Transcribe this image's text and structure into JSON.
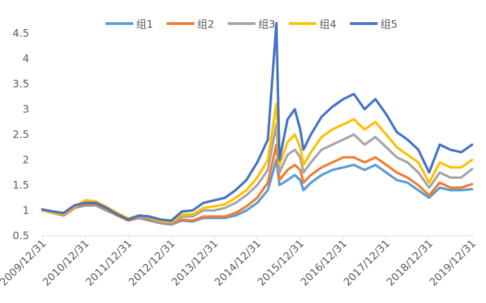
{
  "chart_data": {
    "type": "line",
    "title": "",
    "xlabel": "",
    "ylabel": "",
    "ylim": [
      0.5,
      4.5
    ],
    "yticks": [
      "0.5",
      "1",
      "1.5",
      "2",
      "2.5",
      "3",
      "3.5",
      "4",
      "4.5"
    ],
    "x_tick_labels": [
      "2009/12/31",
      "2010/12/31",
      "2011/12/31",
      "2012/12/31",
      "2013/12/31",
      "2014/12/31",
      "2015/12/31",
      "2016/12/31",
      "2017/12/31",
      "2018/12/31",
      "2019/12/31"
    ],
    "grid": false,
    "legend_position": "top",
    "x": [
      "2009/12/31",
      "2010/03/31",
      "2010/06/30",
      "2010/09/30",
      "2010/12/31",
      "2011/03/31",
      "2011/06/30",
      "2011/09/30",
      "2011/12/31",
      "2012/03/31",
      "2012/06/30",
      "2012/09/30",
      "2012/12/31",
      "2013/03/31",
      "2013/06/30",
      "2013/09/30",
      "2013/12/31",
      "2014/03/31",
      "2014/06/30",
      "2014/09/30",
      "2014/12/31",
      "2015/03/31",
      "2015/06/12",
      "2015/07/08",
      "2015/09/15",
      "2015/11/15",
      "2015/12/31",
      "2016/01/28",
      "2016/03/31",
      "2016/06/30",
      "2016/09/30",
      "2016/12/31",
      "2017/03/31",
      "2017/06/30",
      "2017/09/30",
      "2017/12/31",
      "2018/03/31",
      "2018/06/30",
      "2018/09/30",
      "2018/12/31",
      "2019/03/31",
      "2019/06/30",
      "2019/09/30",
      "2019/12/31"
    ],
    "series": [
      {
        "name": "组1",
        "color": "#5B9BD5",
        "values": [
          1.0,
          0.95,
          0.9,
          1.05,
          1.1,
          1.1,
          1.0,
          0.9,
          0.8,
          0.85,
          0.8,
          0.75,
          0.72,
          0.8,
          0.78,
          0.85,
          0.85,
          0.85,
          0.9,
          1.0,
          1.15,
          1.4,
          2.0,
          1.5,
          1.6,
          1.7,
          1.6,
          1.4,
          1.55,
          1.7,
          1.8,
          1.85,
          1.9,
          1.8,
          1.9,
          1.75,
          1.6,
          1.55,
          1.4,
          1.25,
          1.45,
          1.4,
          1.4,
          1.42
        ]
      },
      {
        "name": "组2",
        "color": "#ED7D31",
        "values": [
          1.0,
          0.95,
          0.9,
          1.05,
          1.12,
          1.12,
          1.02,
          0.9,
          0.8,
          0.86,
          0.82,
          0.76,
          0.73,
          0.82,
          0.8,
          0.88,
          0.88,
          0.88,
          0.95,
          1.08,
          1.25,
          1.55,
          2.3,
          1.6,
          1.8,
          1.9,
          1.8,
          1.55,
          1.7,
          1.85,
          1.95,
          2.05,
          2.05,
          1.95,
          2.05,
          1.9,
          1.75,
          1.65,
          1.5,
          1.3,
          1.55,
          1.45,
          1.45,
          1.52
        ]
      },
      {
        "name": "组3",
        "color": "#A5A5A5",
        "values": [
          1.0,
          0.96,
          0.92,
          1.07,
          1.15,
          1.15,
          1.05,
          0.93,
          0.82,
          0.88,
          0.85,
          0.78,
          0.75,
          0.88,
          0.88,
          1.0,
          1.0,
          1.05,
          1.15,
          1.3,
          1.5,
          1.8,
          2.7,
          1.75,
          2.1,
          2.2,
          2.05,
          1.75,
          1.95,
          2.2,
          2.3,
          2.4,
          2.5,
          2.3,
          2.45,
          2.25,
          2.05,
          1.95,
          1.75,
          1.45,
          1.75,
          1.65,
          1.65,
          1.82
        ]
      },
      {
        "name": "组4",
        "color": "#FFC000",
        "values": [
          1.0,
          0.96,
          0.93,
          1.08,
          1.2,
          1.18,
          1.07,
          0.95,
          0.84,
          0.9,
          0.87,
          0.8,
          0.78,
          0.92,
          0.92,
          1.05,
          1.08,
          1.12,
          1.25,
          1.4,
          1.65,
          2.0,
          3.1,
          1.9,
          2.35,
          2.5,
          2.25,
          1.9,
          2.15,
          2.45,
          2.6,
          2.7,
          2.8,
          2.6,
          2.75,
          2.5,
          2.25,
          2.1,
          1.95,
          1.55,
          1.95,
          1.85,
          1.85,
          2.0
        ]
      },
      {
        "name": "组5",
        "color": "#4472C4",
        "values": [
          1.02,
          0.98,
          0.95,
          1.1,
          1.15,
          1.15,
          1.05,
          0.92,
          0.82,
          0.9,
          0.88,
          0.82,
          0.8,
          0.98,
          1.0,
          1.15,
          1.2,
          1.25,
          1.4,
          1.6,
          1.95,
          2.4,
          4.7,
          2.0,
          2.8,
          3.0,
          2.6,
          2.2,
          2.5,
          2.85,
          3.05,
          3.2,
          3.3,
          3.0,
          3.2,
          2.9,
          2.55,
          2.4,
          2.2,
          1.75,
          2.3,
          2.2,
          2.15,
          2.3
        ]
      }
    ]
  }
}
